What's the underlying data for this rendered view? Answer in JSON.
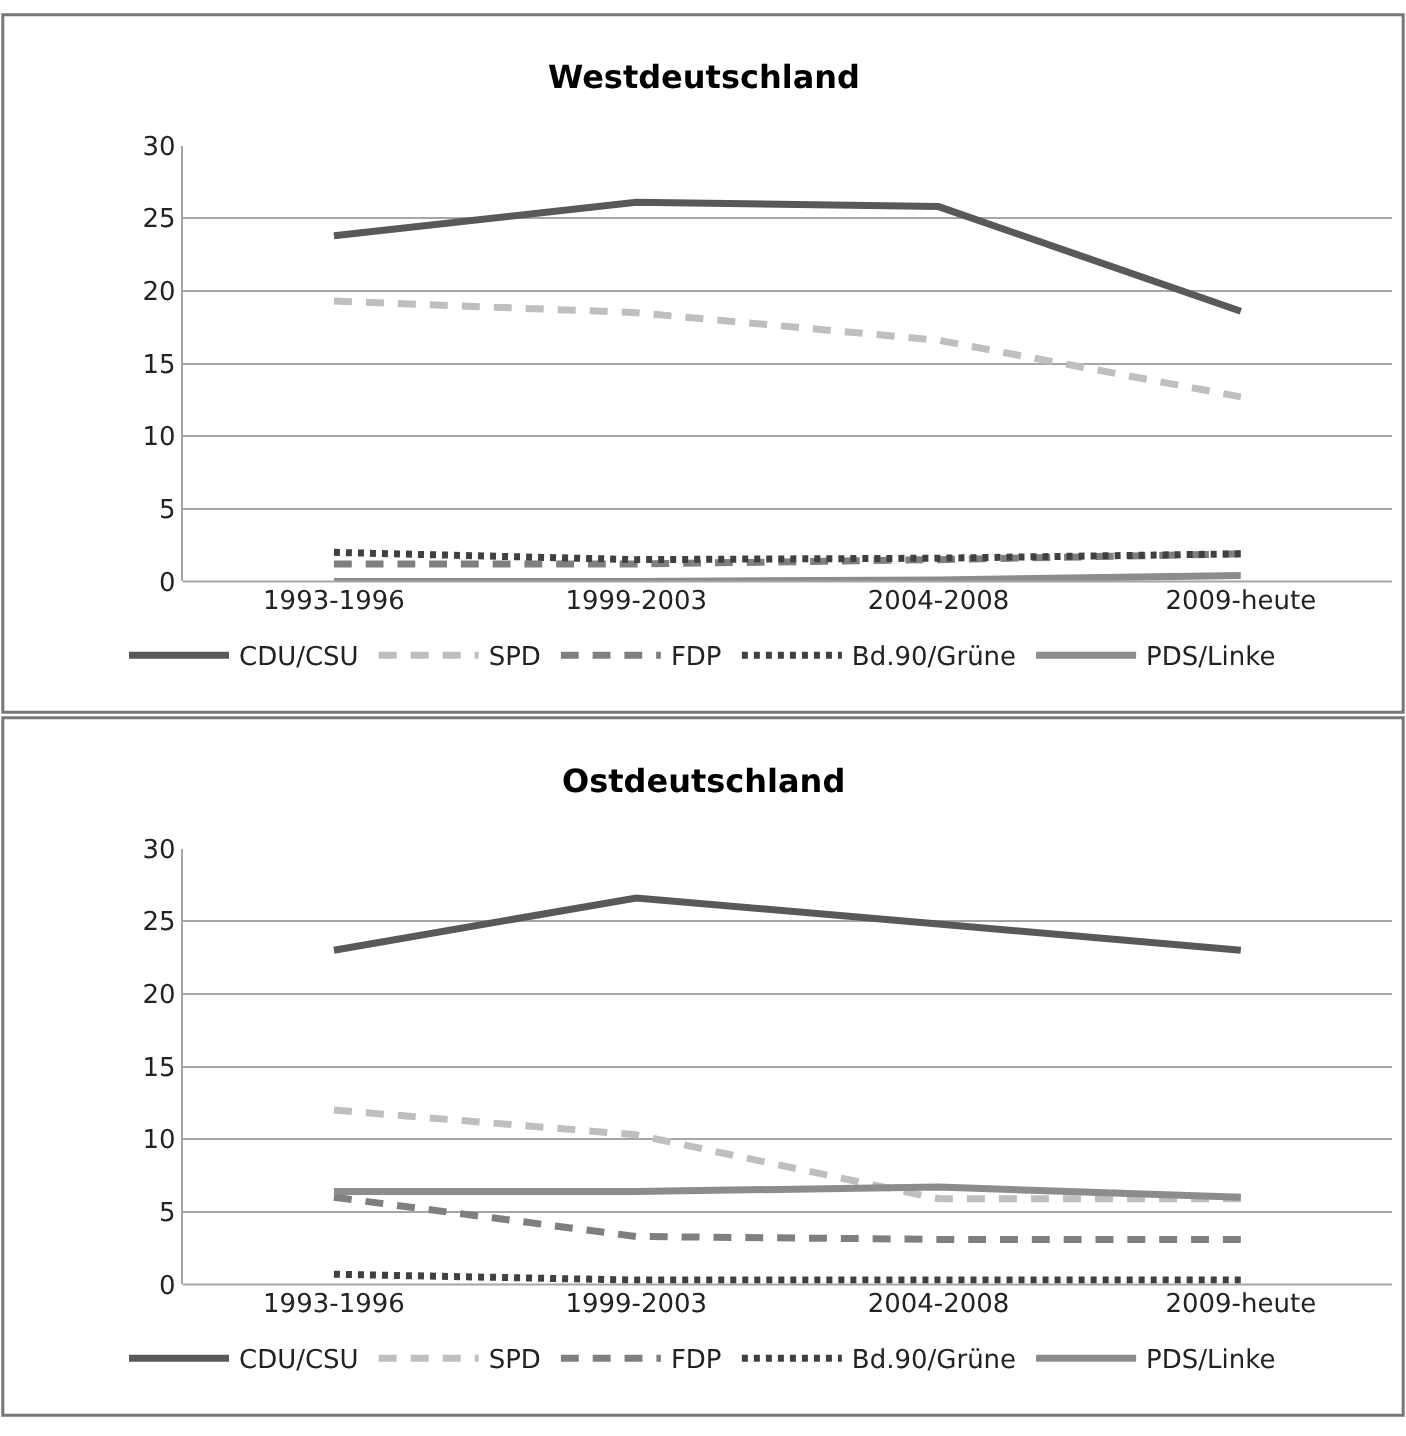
{
  "chart_data": [
    {
      "type": "line",
      "title": "Westdeutschland",
      "categories": [
        "1993-1996",
        "1999-2003",
        "2004-2008",
        "2009-heute"
      ],
      "ylim": [
        0,
        30
      ],
      "yticks": [
        0,
        5,
        10,
        15,
        20,
        25,
        30
      ],
      "grid": "y",
      "legend": "bottom",
      "marker": "none",
      "series": [
        {
          "name": "CDU/CSU",
          "color": "#595959",
          "line_style": "solid",
          "values": [
            23.8,
            26.1,
            25.8,
            18.6
          ]
        },
        {
          "name": "SPD",
          "color": "#bfbfbf",
          "line_style": "dashed",
          "values": [
            19.3,
            18.5,
            16.6,
            12.7
          ]
        },
        {
          "name": "FDP",
          "color": "#7f7f7f",
          "line_style": "dashed",
          "values": [
            1.2,
            1.2,
            1.5,
            1.9
          ]
        },
        {
          "name": "Bd.90/Grüne",
          "color": "#404040",
          "line_style": "dotted",
          "values": [
            2.0,
            1.5,
            1.6,
            1.9
          ]
        },
        {
          "name": "PDS/Linke",
          "color": "#8c8c8c",
          "line_style": "solid",
          "values": [
            0.0,
            0.0,
            0.1,
            0.4
          ]
        }
      ]
    },
    {
      "type": "line",
      "title": "Ostdeutschland",
      "categories": [
        "1993-1996",
        "1999-2003",
        "2004-2008",
        "2009-heute"
      ],
      "ylim": [
        0,
        30
      ],
      "yticks": [
        0,
        5,
        10,
        15,
        20,
        25,
        30
      ],
      "grid": "y",
      "legend": "bottom",
      "marker": "none",
      "series": [
        {
          "name": "CDU/CSU",
          "color": "#595959",
          "line_style": "solid",
          "values": [
            23.0,
            26.6,
            24.8,
            23.0
          ]
        },
        {
          "name": "SPD",
          "color": "#bfbfbf",
          "line_style": "dashed",
          "values": [
            12.0,
            10.3,
            5.9,
            5.9
          ]
        },
        {
          "name": "FDP",
          "color": "#7f7f7f",
          "line_style": "dashed",
          "values": [
            6.0,
            3.3,
            3.1,
            3.1
          ]
        },
        {
          "name": "Bd.90/Grüne",
          "color": "#404040",
          "line_style": "dotted",
          "values": [
            0.7,
            0.3,
            0.3,
            0.3
          ]
        },
        {
          "name": "PDS/Linke",
          "color": "#8c8c8c",
          "line_style": "solid",
          "values": [
            6.4,
            6.4,
            6.7,
            6.0
          ]
        }
      ]
    }
  ]
}
